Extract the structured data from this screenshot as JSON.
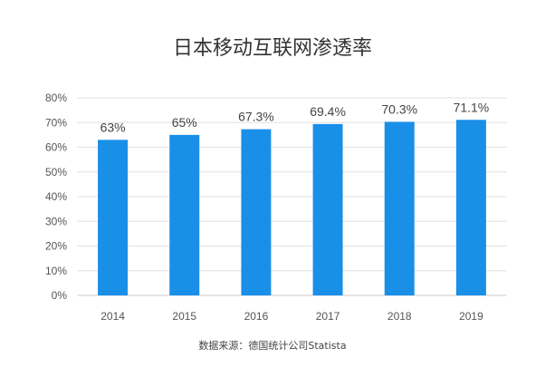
{
  "chart_data": {
    "type": "bar",
    "title": "日本移动互联网渗透率",
    "categories": [
      "2014",
      "2015",
      "2016",
      "2017",
      "2018",
      "2019"
    ],
    "values": [
      63,
      65,
      67.3,
      69.4,
      70.3,
      71.1
    ],
    "data_labels": [
      "63%",
      "65%",
      "67.3%",
      "69.4%",
      "70.3%",
      "71.1%"
    ],
    "y_ticks": [
      "0%",
      "10%",
      "20%",
      "30%",
      "40%",
      "50%",
      "60%",
      "70%",
      "80%"
    ],
    "ylim": [
      0,
      80
    ],
    "y_unit": "%",
    "grid": true,
    "legend": "none",
    "bar_color": "#1a8fe8",
    "source": "数据来源：德国统计公司Statista"
  }
}
